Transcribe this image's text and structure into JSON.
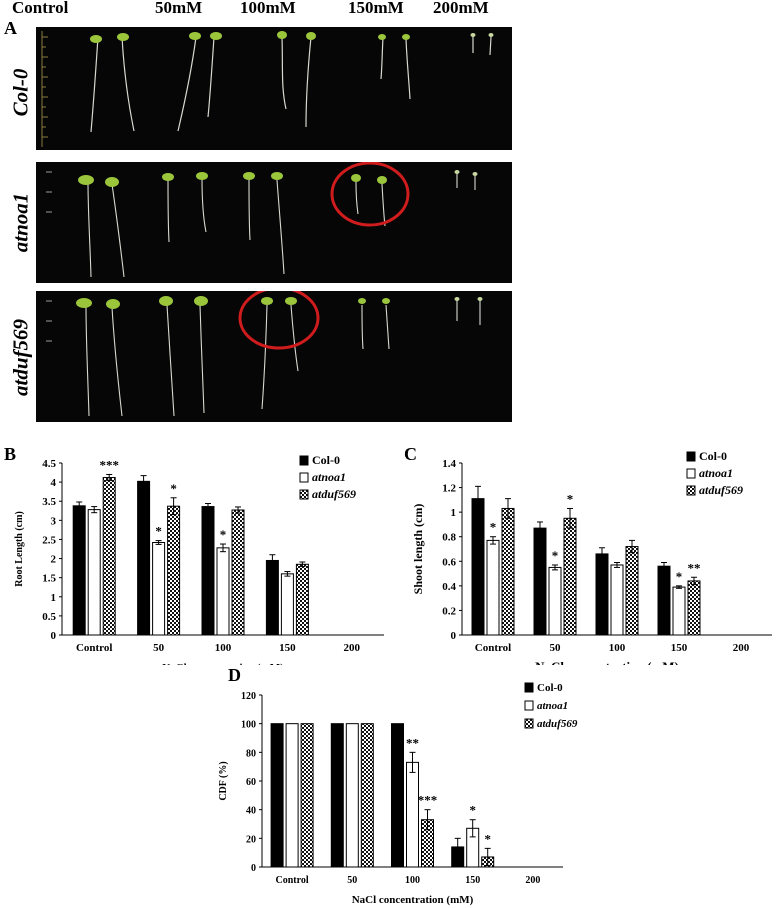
{
  "panel_a": {
    "letter": "A",
    "concentration_headers": [
      "Control",
      "50mM",
      "100mM",
      "150mM",
      "200mM"
    ],
    "genotype_rows": [
      "Col-0",
      "atnoa1",
      "atduf569"
    ]
  },
  "chart_data": [
    {
      "panel": "B",
      "type": "bar",
      "categories": [
        "Control",
        "50",
        "100",
        "150",
        "200"
      ],
      "xlabel": "NaCl concentration (mM)",
      "ylabel": "Root Length (cm)",
      "ylim": [
        0,
        4.5
      ],
      "yticks": [
        "0",
        "0.5",
        "1",
        "1.5",
        "2",
        "2.5",
        "3",
        "3.5",
        "4",
        "4.5"
      ],
      "legend": "top-right",
      "series": [
        {
          "name": "Col-0",
          "values": [
            3.38,
            4.02,
            3.36,
            1.95,
            0
          ],
          "errors": [
            0.1,
            0.15,
            0.08,
            0.15,
            0
          ],
          "sig": [
            "",
            "",
            "",
            "",
            ""
          ]
        },
        {
          "name": "atnoa1",
          "values": [
            3.28,
            2.42,
            2.28,
            1.6,
            0
          ],
          "errors": [
            0.08,
            0.05,
            0.1,
            0.06,
            0
          ],
          "sig": [
            "",
            "*",
            "*",
            "",
            ""
          ]
        },
        {
          "name": "atduf569",
          "values": [
            4.12,
            3.37,
            3.27,
            1.85,
            0
          ],
          "errors": [
            0.08,
            0.22,
            0.08,
            0.06,
            0
          ],
          "sig": [
            "***",
            "*",
            "",
            "",
            ""
          ]
        }
      ]
    },
    {
      "panel": "C",
      "type": "bar",
      "categories": [
        "Control",
        "50",
        "100",
        "150",
        "200"
      ],
      "xlabel": "NaCl concentration (mM)",
      "ylabel": "Shoot length (cm)",
      "ylim": [
        0,
        1.4
      ],
      "yticks": [
        "0",
        "0.2",
        "0.4",
        "0.6",
        "0.8",
        "1",
        "1.2",
        "1.4"
      ],
      "legend": "top-right",
      "series": [
        {
          "name": "Col-0",
          "values": [
            1.11,
            0.87,
            0.66,
            0.56,
            0
          ],
          "errors": [
            0.1,
            0.05,
            0.05,
            0.03,
            0
          ],
          "sig": [
            "",
            "",
            "",
            "",
            ""
          ]
        },
        {
          "name": "atnoa1",
          "values": [
            0.77,
            0.55,
            0.57,
            0.39,
            0
          ],
          "errors": [
            0.03,
            0.02,
            0.02,
            0.01,
            0
          ],
          "sig": [
            "*",
            "*",
            "",
            "*",
            ""
          ]
        },
        {
          "name": "atduf569",
          "values": [
            1.03,
            0.95,
            0.72,
            0.44,
            0
          ],
          "errors": [
            0.08,
            0.08,
            0.05,
            0.03,
            0
          ],
          "sig": [
            "",
            "*",
            "",
            "**",
            ""
          ]
        }
      ]
    },
    {
      "panel": "D",
      "type": "bar",
      "categories": [
        "Control",
        "50",
        "100",
        "150",
        "200"
      ],
      "xlabel": "NaCl concentration (mM)",
      "ylabel": "CDF (%)",
      "ylim": [
        0,
        120
      ],
      "yticks": [
        "0",
        "20",
        "40",
        "60",
        "80",
        "100",
        "120"
      ],
      "legend": "top-right",
      "series": [
        {
          "name": "Col-0",
          "values": [
            100,
            100,
            100,
            14,
            0
          ],
          "errors": [
            0,
            0,
            0,
            6,
            0
          ],
          "sig": [
            "",
            "",
            "",
            "",
            ""
          ]
        },
        {
          "name": "atnoa1",
          "values": [
            100,
            100,
            73,
            27,
            0
          ],
          "errors": [
            0,
            0,
            7,
            6,
            0
          ],
          "sig": [
            "",
            "",
            "**",
            "*",
            ""
          ]
        },
        {
          "name": "atduf569",
          "values": [
            100,
            100,
            33,
            7,
            0
          ],
          "errors": [
            0,
            0,
            7,
            6,
            0
          ],
          "sig": [
            "",
            "",
            "***",
            "*",
            ""
          ]
        }
      ]
    }
  ]
}
